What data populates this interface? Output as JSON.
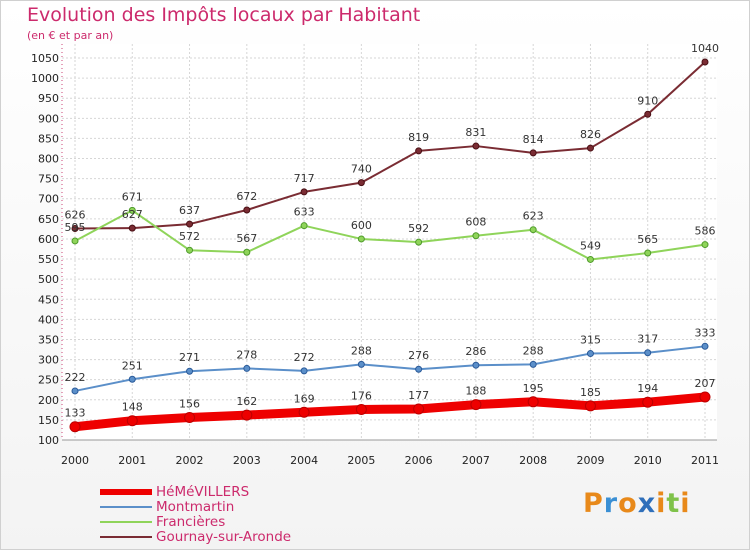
{
  "header": {
    "title": "Evolution des Impôts locaux par Habitant",
    "subtitle": "(en € et par an)"
  },
  "logo": {
    "letters": [
      "P",
      "r",
      "o",
      "x",
      "i",
      "t",
      "i"
    ],
    "colors": [
      "#e8891a",
      "#3a8fd4",
      "#e8891a",
      "#2f6fba",
      "#e8891a",
      "#7fc24a",
      "#e8891a"
    ]
  },
  "chart_data": {
    "type": "line",
    "x": [
      "2000",
      "2001",
      "2002",
      "2003",
      "2004",
      "2005",
      "2006",
      "2007",
      "2008",
      "2009",
      "2010",
      "2011"
    ],
    "ylim": [
      100,
      1050
    ],
    "yticks": [
      100,
      150,
      200,
      250,
      300,
      350,
      400,
      450,
      500,
      550,
      600,
      650,
      700,
      750,
      800,
      850,
      900,
      950,
      1000,
      1050
    ],
    "grid": true,
    "legend_position": "bottom-left",
    "series": [
      {
        "name": "HéMéVILLERS",
        "color": "#ee0000",
        "values": [
          133,
          148,
          156,
          162,
          169,
          176,
          177,
          188,
          195,
          185,
          194,
          207
        ],
        "labels": [
          "133",
          "148",
          "156",
          "162",
          "169",
          "176",
          "177",
          "188",
          "195",
          "185",
          "194",
          "207"
        ]
      },
      {
        "name": "Montmartin",
        "color": "#5b8fc9",
        "values": [
          222,
          251,
          271,
          278,
          272,
          288,
          276,
          286,
          288,
          315,
          317,
          333
        ],
        "labels": [
          "222",
          "251",
          "271",
          "278",
          "272",
          "288",
          "276",
          "286",
          "288",
          "315",
          "317",
          "333"
        ]
      },
      {
        "name": "Francières",
        "color": "#8fd45a",
        "values": [
          595,
          671,
          572,
          567,
          633,
          600,
          592,
          608,
          623,
          549,
          565,
          586
        ],
        "labels": [
          "595",
          "671",
          "572",
          "567",
          "633",
          "600",
          "592",
          "608",
          "623",
          "549",
          "565",
          "586"
        ]
      },
      {
        "name": "Gournay-sur-Aronde",
        "color": "#7a2c33",
        "values": [
          626,
          627,
          637,
          672,
          717,
          740,
          819,
          831,
          814,
          826,
          910,
          1040
        ],
        "labels": [
          "626",
          "627",
          "637",
          "672",
          "717",
          "740",
          "819",
          "831",
          "814",
          "826",
          "910",
          "1040"
        ]
      }
    ]
  }
}
